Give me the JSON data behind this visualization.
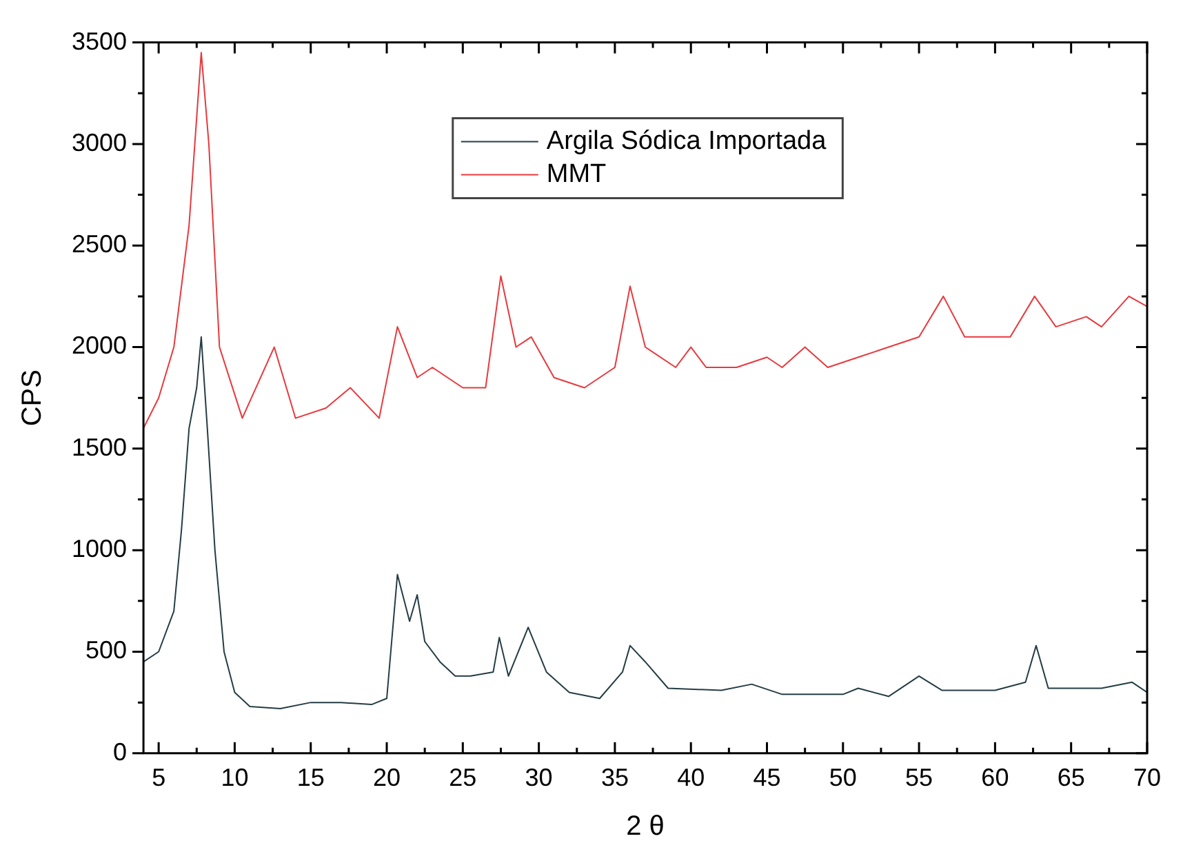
{
  "chart_data": {
    "type": "line",
    "xlabel": "2 θ",
    "ylabel": "CPS",
    "xlim": [
      4,
      70
    ],
    "ylim": [
      0,
      3500
    ],
    "xticks": [
      5,
      10,
      15,
      20,
      25,
      30,
      35,
      40,
      45,
      50,
      55,
      60,
      65,
      70
    ],
    "yticks": [
      0,
      500,
      1000,
      1500,
      2000,
      2500,
      3000,
      3500
    ],
    "grid": false,
    "legend": "top",
    "marker": "none",
    "line_style": "solid",
    "series": [
      {
        "name": "Argila Sódica Importada",
        "color": "#243c44",
        "x": [
          4,
          5,
          6,
          6.5,
          7,
          7.5,
          7.8,
          8.2,
          8.7,
          9.3,
          10,
          11,
          13,
          15,
          17,
          19,
          20,
          20.7,
          21.5,
          22,
          22.5,
          23.5,
          24.5,
          25.5,
          27,
          27.4,
          28,
          29.3,
          30.5,
          32,
          34,
          35.5,
          36,
          37,
          38.5,
          42,
          44,
          46,
          50,
          51,
          53,
          55,
          56.5,
          60,
          62,
          62.7,
          63.5,
          67,
          69,
          70
        ],
        "values": [
          450,
          500,
          700,
          1100,
          1600,
          1800,
          2050,
          1600,
          1000,
          500,
          300,
          230,
          220,
          250,
          250,
          240,
          270,
          880,
          650,
          780,
          550,
          450,
          380,
          380,
          400,
          570,
          380,
          620,
          400,
          300,
          270,
          400,
          530,
          450,
          320,
          310,
          340,
          290,
          290,
          320,
          280,
          380,
          310,
          310,
          350,
          530,
          320,
          320,
          350,
          300
        ]
      },
      {
        "name": "MMT",
        "color": "#e8383d",
        "x": [
          4,
          5,
          6,
          7,
          7.8,
          8.3,
          9,
          10.5,
          12.6,
          14,
          16,
          17.6,
          19.5,
          20.7,
          22,
          23,
          25,
          26.5,
          27.5,
          28.5,
          29.5,
          31,
          33,
          35,
          36,
          37,
          39,
          40,
          41,
          43,
          45,
          46,
          47.5,
          49,
          51,
          53,
          55,
          56.6,
          58,
          61,
          62.6,
          64,
          66,
          67,
          68.8,
          70
        ],
        "values": [
          1600,
          1750,
          2000,
          2600,
          3450,
          3000,
          2000,
          1650,
          2000,
          1650,
          1700,
          1800,
          1650,
          2100,
          1850,
          1900,
          1800,
          1800,
          2350,
          2000,
          2050,
          1850,
          1800,
          1900,
          2300,
          2000,
          1900,
          2000,
          1900,
          1900,
          1950,
          1900,
          2000,
          1900,
          1950,
          2000,
          2050,
          2250,
          2050,
          2050,
          2250,
          2100,
          2150,
          2100,
          2250,
          2200
        ]
      }
    ]
  }
}
